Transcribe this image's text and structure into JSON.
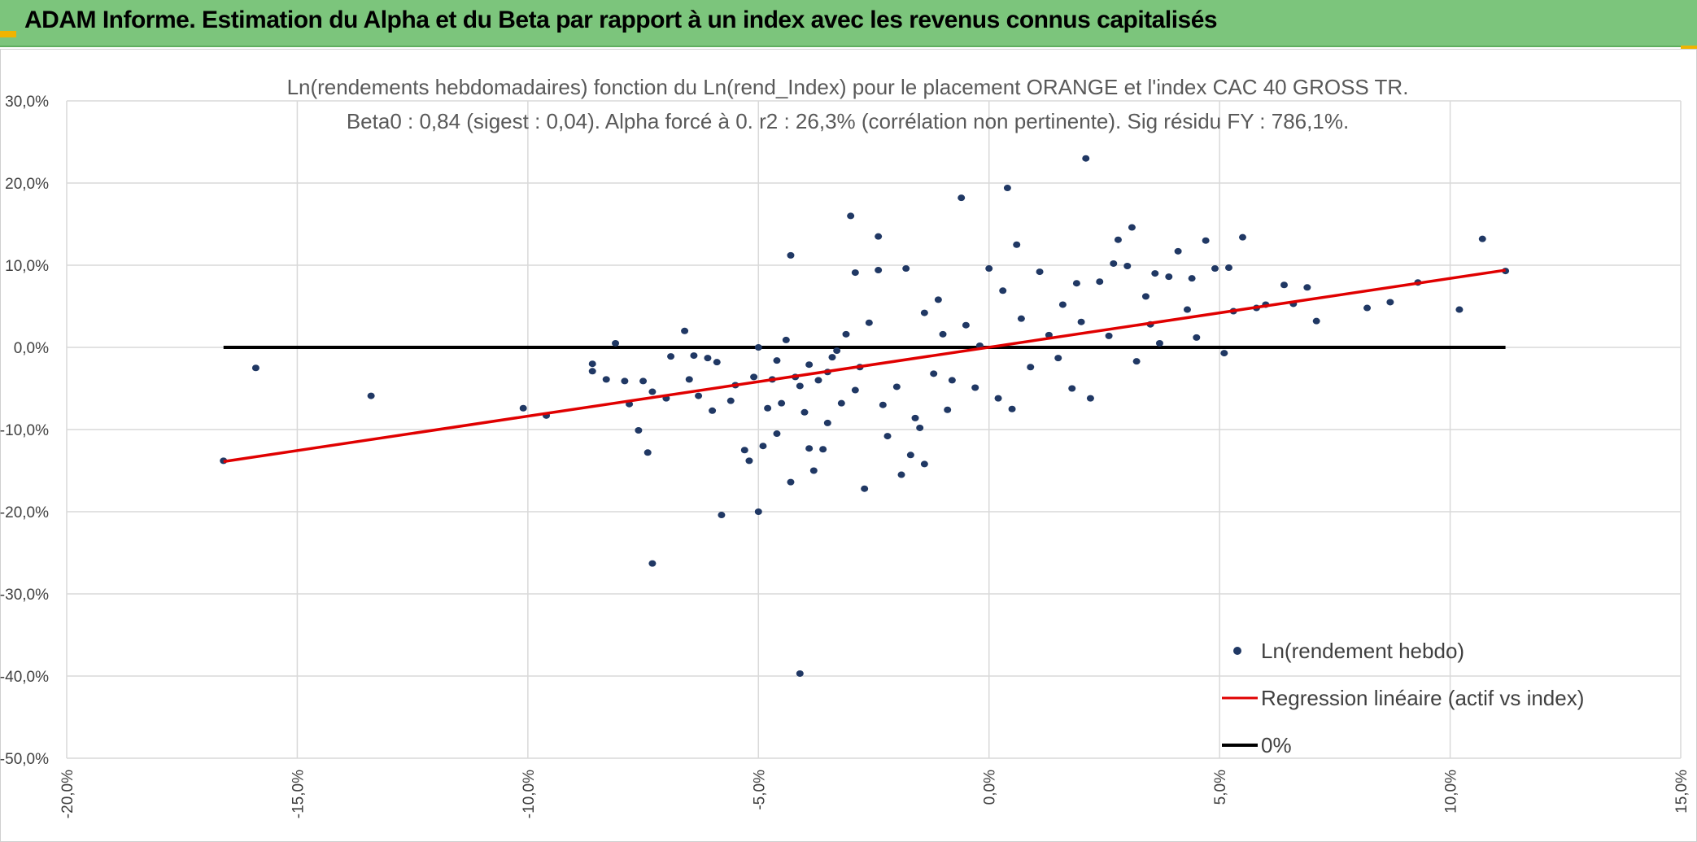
{
  "header": {
    "title": "ADAM Informe. Estimation du Alpha et du Beta par rapport à un index avec les revenus connus capitalisés"
  },
  "colors": {
    "header_bg": "#7cc57c",
    "points": "#203864",
    "regression": "#e00000",
    "zero_line": "#000000",
    "corner_accent": "#f0b400"
  },
  "chart_data": {
    "type": "scatter",
    "title_line1": "Ln(rendements hebdomadaires) fonction du Ln(rend_Index) pour le placement ORANGE et l'index CAC 40 GROSS TR.",
    "title_line2": "Beta0 : 0,84 (sigest : 0,04). Alpha forcé à 0. r2 : 26,3% (corrélation non pertinente). Sig résidu FY : 786,1%.",
    "xlim": [
      -20,
      15
    ],
    "ylim": [
      -50,
      30
    ],
    "x_ticks": [
      "-20,0%",
      "-15,0%",
      "-10,0%",
      "-5,0%",
      "0,0%",
      "5,0%",
      "10,0%",
      "15,0%"
    ],
    "y_ticks": [
      "30,0%",
      "20,0%",
      "10,0%",
      "0,0%",
      "-10,0%",
      "-20,0%",
      "-30,0%",
      "-40,0%",
      "-50,0%"
    ],
    "grid": true,
    "legend_position": "bottom-right",
    "series": [
      {
        "name": "Ln(rendement hebdo)",
        "kind": "points",
        "points": [
          [
            -16.6,
            -13.8
          ],
          [
            -15.9,
            -2.5
          ],
          [
            -13.4,
            -5.9
          ],
          [
            -10.1,
            -7.4
          ],
          [
            -9.6,
            -8.3
          ],
          [
            -8.6,
            -2.0
          ],
          [
            -8.6,
            -2.9
          ],
          [
            -8.3,
            -3.9
          ],
          [
            -8.1,
            0.5
          ],
          [
            -7.9,
            -4.1
          ],
          [
            -7.8,
            -6.9
          ],
          [
            -7.6,
            -10.1
          ],
          [
            -7.5,
            -4.1
          ],
          [
            -7.4,
            -12.8
          ],
          [
            -7.3,
            -5.4
          ],
          [
            -7.0,
            -6.2
          ],
          [
            -6.9,
            -1.1
          ],
          [
            -6.5,
            -3.9
          ],
          [
            -6.6,
            2.0
          ],
          [
            -6.4,
            -1.0
          ],
          [
            -6.3,
            -5.9
          ],
          [
            -6.1,
            -1.3
          ],
          [
            -6.0,
            -7.7
          ],
          [
            -5.9,
            -1.8
          ],
          [
            -5.5,
            -4.6
          ],
          [
            -5.6,
            -6.5
          ],
          [
            -5.3,
            -12.5
          ],
          [
            -5.2,
            -13.8
          ],
          [
            -5.1,
            -3.6
          ],
          [
            -5.0,
            0.0
          ],
          [
            -4.9,
            -12.0
          ],
          [
            -4.8,
            -7.4
          ],
          [
            -4.7,
            -3.9
          ],
          [
            -4.6,
            -1.6
          ],
          [
            -4.5,
            -6.8
          ],
          [
            -4.4,
            0.9
          ],
          [
            -4.3,
            -16.4
          ],
          [
            -4.3,
            11.2
          ],
          [
            -4.2,
            -3.6
          ],
          [
            -4.1,
            -4.7
          ],
          [
            -4.0,
            -7.9
          ],
          [
            -3.9,
            -2.1
          ],
          [
            -3.9,
            -12.3
          ],
          [
            -3.8,
            -15.0
          ],
          [
            -3.7,
            -4.0
          ],
          [
            -3.6,
            -12.4
          ],
          [
            -3.5,
            -3.0
          ],
          [
            -3.4,
            -1.2
          ],
          [
            -3.3,
            -0.4
          ],
          [
            -3.2,
            -6.8
          ],
          [
            -3.1,
            1.6
          ],
          [
            -3.0,
            16.0
          ],
          [
            -2.9,
            -5.2
          ],
          [
            -2.8,
            -2.4
          ],
          [
            -2.7,
            -17.2
          ],
          [
            -2.6,
            3.0
          ],
          [
            -2.4,
            13.5
          ],
          [
            -2.4,
            9.4
          ],
          [
            -2.2,
            -10.8
          ],
          [
            -2.0,
            -4.8
          ],
          [
            -1.9,
            -15.5
          ],
          [
            -1.8,
            9.6
          ],
          [
            -1.7,
            -13.1
          ],
          [
            -1.6,
            -8.6
          ],
          [
            -1.4,
            -14.2
          ],
          [
            -1.2,
            -3.2
          ],
          [
            -1.0,
            1.6
          ],
          [
            -0.8,
            -4.0
          ],
          [
            -0.6,
            18.2
          ],
          [
            -0.5,
            2.7
          ],
          [
            -0.3,
            -4.9
          ],
          [
            -0.2,
            0.2
          ],
          [
            0.0,
            9.6
          ],
          [
            0.2,
            -6.2
          ],
          [
            0.4,
            19.4
          ],
          [
            0.6,
            12.5
          ],
          [
            0.7,
            3.5
          ],
          [
            0.9,
            -2.4
          ],
          [
            1.1,
            9.2
          ],
          [
            1.3,
            1.5
          ],
          [
            1.5,
            -1.3
          ],
          [
            1.6,
            5.2
          ],
          [
            1.8,
            -5.0
          ],
          [
            2.0,
            3.1
          ],
          [
            2.1,
            23.0
          ],
          [
            2.2,
            -6.2
          ],
          [
            2.4,
            8.0
          ],
          [
            2.6,
            1.4
          ],
          [
            2.8,
            13.1
          ],
          [
            3.0,
            9.9
          ],
          [
            3.1,
            14.6
          ],
          [
            3.2,
            -1.7
          ],
          [
            3.4,
            6.2
          ],
          [
            3.5,
            2.8
          ],
          [
            3.7,
            0.5
          ],
          [
            3.9,
            8.6
          ],
          [
            4.1,
            11.7
          ],
          [
            4.3,
            4.6
          ],
          [
            4.5,
            1.2
          ],
          [
            4.7,
            13.0
          ],
          [
            4.9,
            9.6
          ],
          [
            5.1,
            -0.7
          ],
          [
            5.3,
            4.4
          ],
          [
            5.5,
            13.4
          ],
          [
            5.8,
            4.8
          ],
          [
            6.0,
            5.2
          ],
          [
            6.4,
            7.6
          ],
          [
            6.6,
            5.3
          ],
          [
            6.9,
            7.3
          ],
          [
            7.1,
            3.2
          ],
          [
            8.2,
            4.8
          ],
          [
            8.7,
            5.5
          ],
          [
            9.3,
            7.9
          ],
          [
            10.2,
            4.6
          ],
          [
            10.7,
            13.2
          ],
          [
            11.2,
            9.3
          ],
          [
            -4.1,
            -39.7
          ],
          [
            -7.3,
            -26.3
          ],
          [
            -5.8,
            -20.4
          ],
          [
            -5.0,
            -20.0
          ],
          [
            -4.6,
            -10.5
          ],
          [
            -3.5,
            -9.2
          ],
          [
            -2.3,
            -7.0
          ],
          [
            -1.5,
            -9.8
          ],
          [
            -0.9,
            -7.6
          ],
          [
            0.5,
            -7.5
          ],
          [
            -2.9,
            9.1
          ],
          [
            -1.4,
            4.2
          ],
          [
            0.3,
            6.9
          ],
          [
            1.9,
            7.8
          ],
          [
            2.7,
            10.2
          ],
          [
            3.6,
            9.0
          ],
          [
            4.4,
            8.4
          ],
          [
            5.2,
            9.7
          ],
          [
            -1.1,
            5.8
          ]
        ]
      },
      {
        "name": "Regression linéaire (actif vs index)",
        "kind": "line",
        "x": [
          -16.6,
          11.2
        ],
        "y": [
          -13.9,
          9.4
        ]
      },
      {
        "name": "0%",
        "kind": "line",
        "x": [
          -16.6,
          11.2
        ],
        "y": [
          0,
          0
        ]
      }
    ]
  }
}
